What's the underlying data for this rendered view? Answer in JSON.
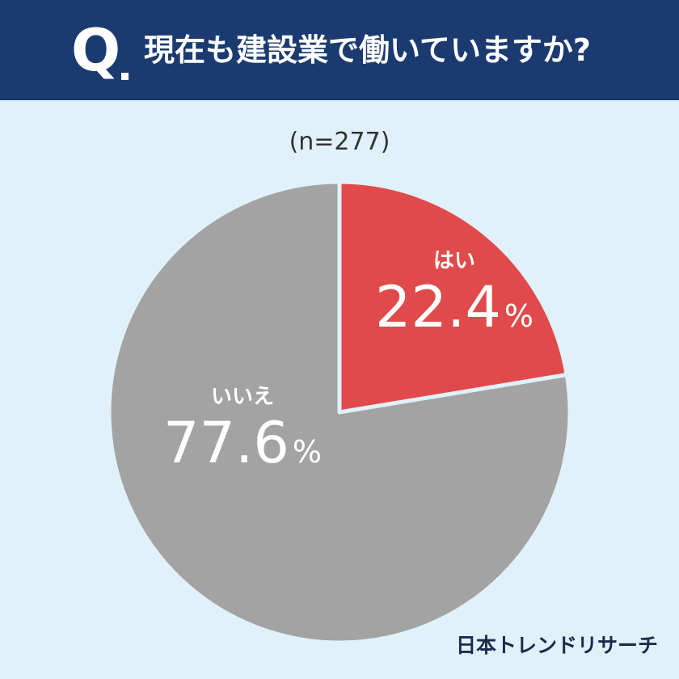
{
  "header": {
    "q_mark": "Q",
    "question": "現在も建設業で働いていますか?"
  },
  "sample_size": "(n=277)",
  "chart_data": {
    "type": "pie",
    "title": "現在も建設業で働いていますか?",
    "subtitle": "(n=277)",
    "slices": [
      {
        "label": "はい",
        "value": 22.4,
        "display": "22.4",
        "unit": "%",
        "color": "#e04a4a"
      },
      {
        "label": "いいえ",
        "value": 77.6,
        "display": "77.6",
        "unit": "%",
        "color": "#a3a3a3"
      }
    ],
    "start": "12 o'clock",
    "direction": "clockwise",
    "separator_color": "#e0f1fa"
  },
  "brand": "日本トレンドリサーチ"
}
